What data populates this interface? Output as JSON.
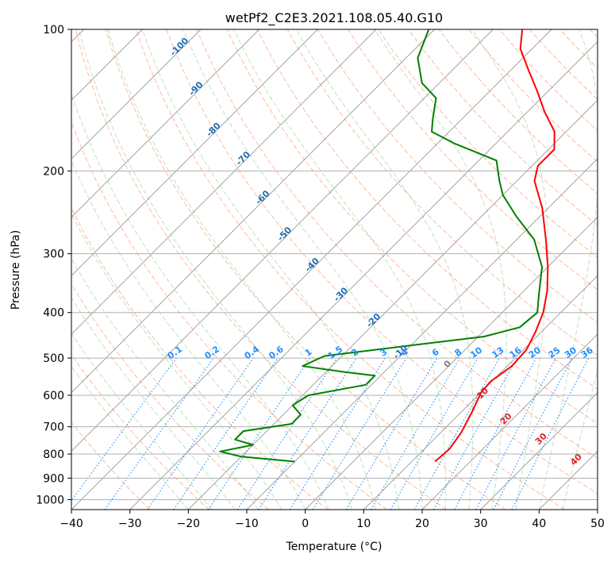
{
  "chart_data": {
    "type": "line",
    "title": "wetPf2_C2E3.2021.108.05.40.G10",
    "xlabel": "Temperature (°C)",
    "ylabel": "Pressure (hPa)",
    "xlim": [
      -40,
      50
    ],
    "ylim": [
      1050,
      100
    ],
    "y_scale": "log",
    "grid": true,
    "x_ticks": [
      -40,
      -30,
      -20,
      -10,
      0,
      10,
      20,
      30,
      40,
      50
    ],
    "y_ticks": [
      100,
      200,
      300,
      400,
      500,
      600,
      700,
      800,
      900,
      1000
    ],
    "series": [
      {
        "color": "#ff0000",
        "points": [
          [
            14.0,
            830
          ],
          [
            14.3,
            780
          ],
          [
            13.5,
            720
          ],
          [
            11.8,
            650
          ],
          [
            10.0,
            590
          ],
          [
            9.8,
            560
          ],
          [
            10.8,
            520
          ],
          [
            10.5,
            480
          ],
          [
            9.0,
            440
          ],
          [
            7.0,
            400
          ],
          [
            4.0,
            360
          ],
          [
            0.0,
            320
          ],
          [
            -5.0,
            280
          ],
          [
            -11.0,
            240
          ],
          [
            -17.0,
            210
          ],
          [
            -19.0,
            195
          ],
          [
            -19.0,
            180
          ],
          [
            -22.0,
            165
          ],
          [
            -27.0,
            150
          ],
          [
            -32.0,
            135
          ],
          [
            -37.0,
            122
          ],
          [
            -42.0,
            110
          ],
          [
            -45.0,
            100
          ]
        ]
      },
      {
        "color": "#008000",
        "points": [
          [
            -10.0,
            830
          ],
          [
            -20.0,
            810
          ],
          [
            -24.5,
            790
          ],
          [
            -20.0,
            765
          ],
          [
            -24.0,
            745
          ],
          [
            -24.0,
            715
          ],
          [
            -17.0,
            690
          ],
          [
            -17.0,
            660
          ],
          [
            -20.0,
            630
          ],
          [
            -19.0,
            600
          ],
          [
            -11.0,
            570
          ],
          [
            -11.0,
            545
          ],
          [
            -17.0,
            535
          ],
          [
            -25.0,
            520
          ],
          [
            -23.0,
            495
          ],
          [
            -10.0,
            470
          ],
          [
            1.0,
            450
          ],
          [
            5.5,
            430
          ],
          [
            6.0,
            400
          ],
          [
            3.5,
            370
          ],
          [
            -1.0,
            320
          ],
          [
            -7.0,
            280
          ],
          [
            -14.0,
            250
          ],
          [
            -20.0,
            225
          ],
          [
            -23.0,
            210
          ],
          [
            -27.0,
            190
          ],
          [
            -37.0,
            175
          ],
          [
            -43.0,
            165
          ],
          [
            -45.0,
            155
          ],
          [
            -48.0,
            140
          ],
          [
            -53.0,
            130
          ],
          [
            -58.0,
            115
          ],
          [
            -61.0,
            100
          ]
        ]
      }
    ],
    "isotherm_labels": [
      "-100",
      "-90",
      "-80",
      "-70",
      "-60",
      "-50",
      "-40",
      "-30",
      "-20",
      "-10"
    ],
    "mixing_ratio_labels": [
      "0.1",
      "0.2",
      "0.4",
      "0.6",
      "1",
      "1.5",
      "2",
      "3",
      "4",
      "6",
      "8",
      "10",
      "13",
      "16",
      "20",
      "25",
      "30",
      "36"
    ],
    "dry_adiabat_labels": [
      "0",
      "10",
      "20",
      "30",
      "40"
    ],
    "colors": {
      "temperature": "#ff0000",
      "dewpoint": "#008000",
      "isotherm_label": "#1f6fb4",
      "mixing_ratio": "#1e90ff",
      "dry_adiabat_label": "#d62728",
      "zero_label": "#808080"
    }
  }
}
